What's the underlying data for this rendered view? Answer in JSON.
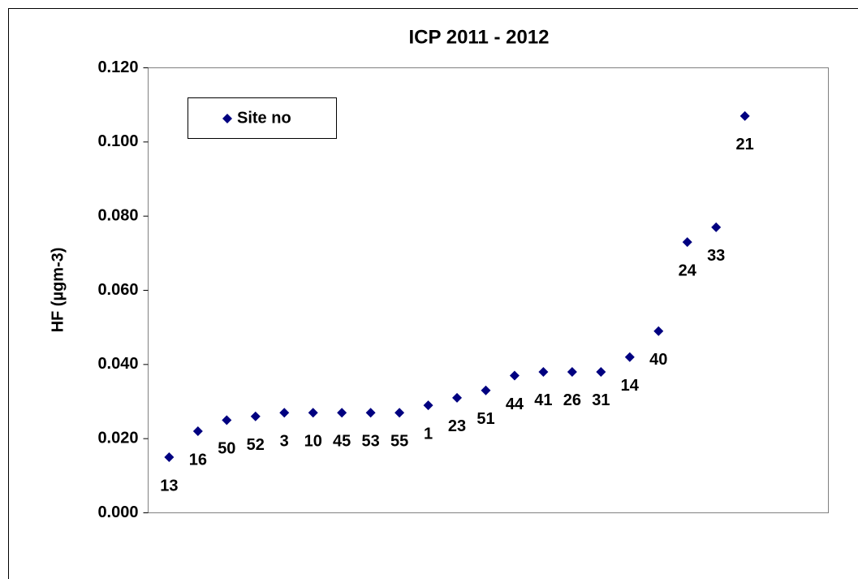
{
  "chart_data": {
    "type": "scatter",
    "title": "ICP 2011 - 2012",
    "y_label": "HF (µgm-3)",
    "legend": "upper left",
    "series": [
      {
        "name": "Site no",
        "color": "#000080",
        "x": [
          1,
          2,
          3,
          4,
          5,
          6,
          7,
          8,
          9,
          10,
          11,
          12,
          13,
          14,
          15,
          16,
          17,
          18,
          19,
          20,
          21
        ],
        "values": [
          0.015,
          0.022,
          0.025,
          0.026,
          0.027,
          0.027,
          0.027,
          0.027,
          0.027,
          0.029,
          0.031,
          0.033,
          0.037,
          0.038,
          0.038,
          0.038,
          0.042,
          0.049,
          0.073,
          0.077,
          0.107
        ],
        "point_labels": [
          "13",
          "16",
          "50",
          "52",
          "3",
          "10",
          "45",
          "53",
          "55",
          "1",
          "23",
          "51",
          "44",
          "41",
          "26",
          "31",
          "14",
          "40",
          "24",
          "33",
          "21"
        ]
      }
    ],
    "xlim": [
      0.27,
      23.9
    ],
    "ylim": [
      0,
      0.12
    ],
    "yticks": [
      {
        "value": 0,
        "label": "0.000"
      },
      {
        "value": 0.02,
        "label": "0.020"
      },
      {
        "value": 0.04,
        "label": "0.040"
      },
      {
        "value": 0.06,
        "label": "0.060"
      },
      {
        "value": 0.08,
        "label": "0.080"
      },
      {
        "value": 0.1,
        "label": "0.100"
      },
      {
        "value": 0.12,
        "label": "0.120"
      }
    ]
  }
}
